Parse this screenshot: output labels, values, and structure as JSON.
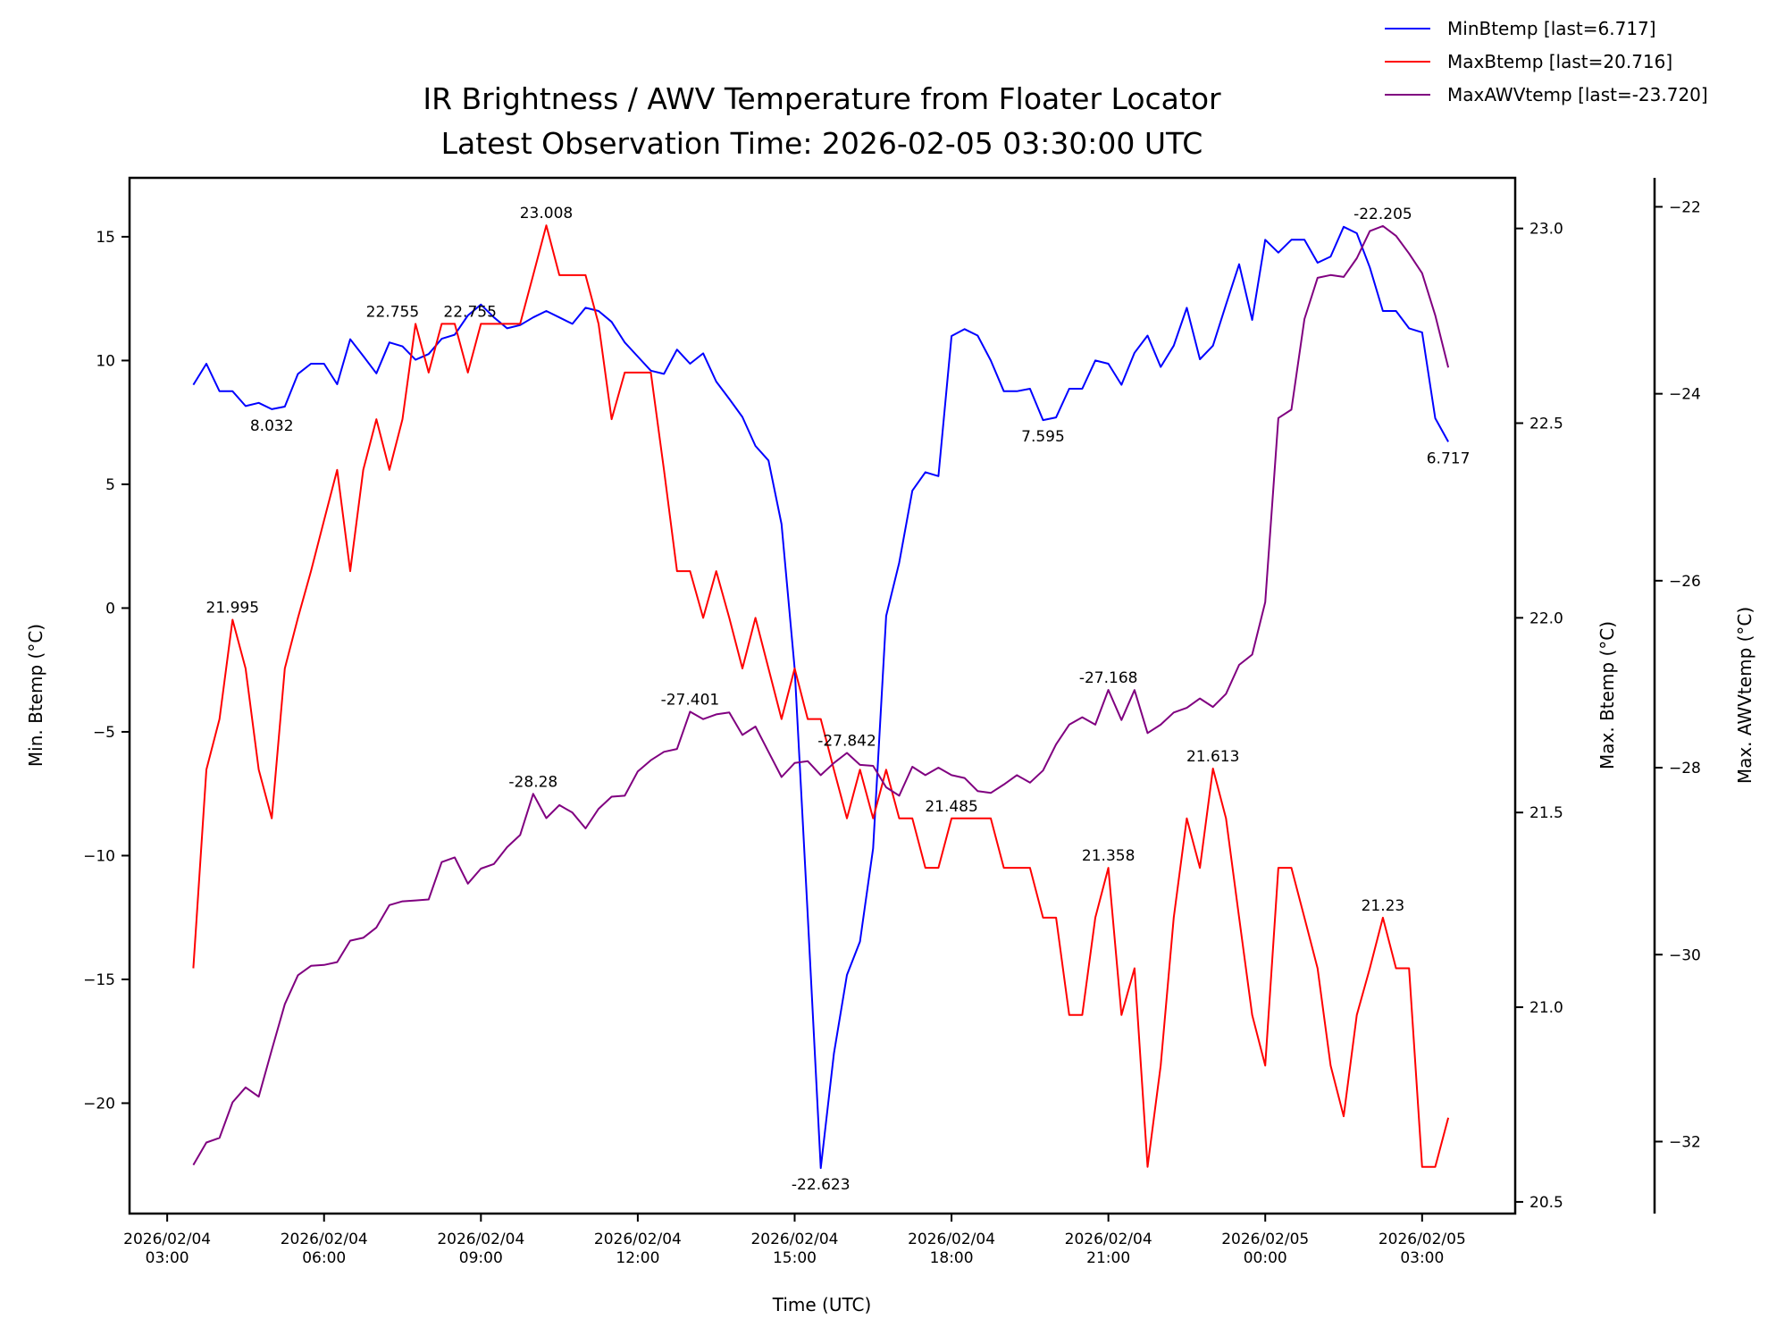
{
  "chart_data": {
    "type": "line",
    "title": [
      "IR Brightness / AWV Temperature from Floater Locator",
      "Latest Observation Time: 2026-02-05 03:30:00 UTC"
    ],
    "xlabel": "Time (UTC)",
    "x_unit": "hours since 2026-02-04 00:00 UTC",
    "x_start": 3.5,
    "x_step": 0.25,
    "xlim": [
      2.28,
      28.78
    ],
    "x_ticks": [
      {
        "value": 3,
        "label": [
          "2026/02/04",
          "03:00"
        ]
      },
      {
        "value": 6,
        "label": [
          "2026/02/04",
          "06:00"
        ]
      },
      {
        "value": 9,
        "label": [
          "2026/02/04",
          "09:00"
        ]
      },
      {
        "value": 12,
        "label": [
          "2026/02/04",
          "12:00"
        ]
      },
      {
        "value": 15,
        "label": [
          "2026/02/04",
          "15:00"
        ]
      },
      {
        "value": 18,
        "label": [
          "2026/02/04",
          "18:00"
        ]
      },
      {
        "value": 21,
        "label": [
          "2026/02/04",
          "21:00"
        ]
      },
      {
        "value": 24,
        "label": [
          "2026/02/05",
          "00:00"
        ]
      },
      {
        "value": 27,
        "label": [
          "2026/02/05",
          "03:00"
        ]
      }
    ],
    "axes": {
      "min": {
        "label": "Min. Btemp (°C)",
        "ylim": [
          -24.46,
          17.38
        ],
        "ticks": [
          {
            "v": -20,
            "t": "−20"
          },
          {
            "v": -15,
            "t": "−15"
          },
          {
            "v": -10,
            "t": "−10"
          },
          {
            "v": -5,
            "t": "−5"
          },
          {
            "v": 0,
            "t": "0"
          },
          {
            "v": 5,
            "t": "5"
          },
          {
            "v": 10,
            "t": "10"
          },
          {
            "v": 15,
            "t": "15"
          }
        ]
      },
      "max": {
        "label": "Max. Btemp (°C)",
        "ylim": [
          20.47,
          23.13
        ],
        "ticks": [
          {
            "v": 20.5,
            "t": "20.5"
          },
          {
            "v": 21.0,
            "t": "21.0"
          },
          {
            "v": 21.5,
            "t": "21.5"
          },
          {
            "v": 22.0,
            "t": "22.0"
          },
          {
            "v": 22.5,
            "t": "22.5"
          },
          {
            "v": 23.0,
            "t": "23.0"
          }
        ]
      },
      "awv": {
        "label": "Max. AWVtemp (°C)",
        "ylim": [
          -32.77,
          -21.69
        ],
        "ticks": [
          {
            "v": -32,
            "t": "−32"
          },
          {
            "v": -30,
            "t": "−30"
          },
          {
            "v": -28,
            "t": "−28"
          },
          {
            "v": -26,
            "t": "−26"
          },
          {
            "v": -24,
            "t": "−24"
          },
          {
            "v": -22,
            "t": "−22"
          }
        ]
      }
    },
    "series": [
      {
        "name": "MinBtemp",
        "legend": "MinBtemp [last=6.717]",
        "axis": "min",
        "color": "#0000ff",
        "values": [
          9.02,
          9.87,
          8.76,
          8.76,
          8.16,
          8.29,
          8.032,
          8.14,
          9.46,
          9.87,
          9.87,
          9.04,
          10.86,
          10.18,
          9.48,
          10.73,
          10.57,
          10.03,
          10.26,
          10.88,
          11.04,
          11.82,
          12.26,
          11.74,
          11.3,
          11.43,
          11.74,
          12.0,
          11.74,
          11.48,
          12.13,
          12.0,
          11.56,
          10.73,
          10.16,
          9.59,
          9.46,
          10.44,
          9.87,
          10.29,
          9.15,
          8.45,
          7.72,
          6.55,
          5.96,
          3.39,
          -2.45,
          -12.4,
          -22.623,
          -18.0,
          -14.82,
          -13.47,
          -9.71,
          -0.32,
          1.83,
          4.74,
          5.49,
          5.33,
          10.99,
          11.27,
          11.01,
          10.0,
          8.76,
          8.76,
          8.86,
          7.595,
          7.7,
          8.86,
          8.86,
          10.0,
          9.87,
          9.02,
          10.31,
          11.01,
          9.74,
          10.6,
          12.13,
          10.05,
          10.6,
          12.26,
          13.89,
          11.64,
          14.88,
          14.36,
          14.88,
          14.88,
          13.95,
          14.2,
          15.4,
          15.14,
          13.76,
          12.0,
          12.0,
          11.3,
          11.14,
          7.67,
          6.717
        ],
        "annotations": [
          {
            "i": 6,
            "text": "8.032",
            "pos": "below"
          },
          {
            "i": 65,
            "text": "7.595",
            "pos": "below"
          },
          {
            "i": 96,
            "text": "6.717",
            "pos": "below"
          },
          {
            "i": 48,
            "text": "-22.623",
            "pos": "below"
          }
        ]
      },
      {
        "name": "MaxBtemp",
        "legend": "MaxBtemp [last=20.716]",
        "axis": "max",
        "color": "#ff0000",
        "values": [
          21.1,
          21.61,
          21.74,
          21.995,
          21.87,
          21.61,
          21.485,
          21.87,
          22.0,
          22.12,
          22.25,
          22.38,
          22.12,
          22.38,
          22.51,
          22.38,
          22.51,
          22.755,
          22.63,
          22.755,
          22.755,
          22.63,
          22.755,
          22.755,
          22.755,
          22.755,
          22.88,
          23.008,
          22.88,
          22.88,
          22.88,
          22.755,
          22.51,
          22.63,
          22.63,
          22.63,
          22.38,
          22.12,
          22.12,
          22.0,
          22.12,
          22.0,
          21.87,
          22.0,
          21.87,
          21.74,
          21.87,
          21.74,
          21.74,
          21.61,
          21.485,
          21.61,
          21.485,
          21.61,
          21.485,
          21.485,
          21.358,
          21.358,
          21.485,
          21.485,
          21.485,
          21.485,
          21.358,
          21.358,
          21.358,
          21.23,
          21.23,
          20.98,
          20.98,
          21.23,
          21.358,
          20.98,
          21.1,
          20.59,
          20.85,
          21.23,
          21.485,
          21.358,
          21.613,
          21.485,
          21.23,
          20.98,
          20.85,
          21.358,
          21.358,
          21.23,
          21.1,
          20.85,
          20.72,
          20.98,
          21.1,
          21.23,
          21.1,
          21.1,
          20.59,
          20.59,
          20.716
        ],
        "annotations": [
          {
            "i": 3,
            "text": "21.995",
            "pos": "above"
          },
          {
            "i": 17,
            "text": "22.755",
            "pos": "above"
          },
          {
            "i": 19,
            "text": "22.755",
            "pos": "above"
          },
          {
            "i": 27,
            "text": "23.008",
            "pos": "above"
          },
          {
            "i": 58,
            "text": "21.485",
            "pos": "above"
          },
          {
            "i": 70,
            "text": "21.358",
            "pos": "above"
          },
          {
            "i": 78,
            "text": "21.613",
            "pos": "above"
          },
          {
            "i": 91,
            "text": "21.23",
            "pos": "above"
          }
        ]
      },
      {
        "name": "MaxAWVtemp",
        "legend": "MaxAWVtemp [last=-23.720]",
        "axis": "awv",
        "color": "#800080",
        "values": [
          -32.25,
          -32.01,
          -31.96,
          -31.58,
          -31.42,
          -31.52,
          -31.02,
          -30.53,
          -30.22,
          -30.12,
          -30.11,
          -30.08,
          -29.85,
          -29.82,
          -29.71,
          -29.47,
          -29.43,
          -29.42,
          -29.41,
          -29.01,
          -28.96,
          -29.24,
          -29.08,
          -29.03,
          -28.85,
          -28.72,
          -28.28,
          -28.54,
          -28.4,
          -28.48,
          -28.65,
          -28.44,
          -28.31,
          -28.3,
          -28.04,
          -27.92,
          -27.83,
          -27.8,
          -27.401,
          -27.48,
          -27.43,
          -27.41,
          -27.65,
          -27.56,
          -27.83,
          -28.1,
          -27.95,
          -27.93,
          -28.08,
          -27.95,
          -27.842,
          -27.97,
          -27.98,
          -28.21,
          -28.3,
          -27.99,
          -28.08,
          -28.0,
          -28.08,
          -28.11,
          -28.25,
          -28.27,
          -28.18,
          -28.08,
          -28.16,
          -28.03,
          -27.75,
          -27.54,
          -27.46,
          -27.54,
          -27.168,
          -27.49,
          -27.17,
          -27.63,
          -27.54,
          -27.41,
          -27.36,
          -27.26,
          -27.35,
          -27.21,
          -26.9,
          -26.79,
          -26.23,
          -24.26,
          -24.17,
          -23.2,
          -22.76,
          -22.73,
          -22.75,
          -22.55,
          -22.26,
          -22.205,
          -22.31,
          -22.5,
          -22.71,
          -23.16,
          -23.72
        ],
        "annotations": [
          {
            "i": 26,
            "text": "-28.28",
            "pos": "above"
          },
          {
            "i": 38,
            "text": "-27.401",
            "pos": "above"
          },
          {
            "i": 50,
            "text": "-27.842",
            "pos": "above"
          },
          {
            "i": 70,
            "text": "-27.168",
            "pos": "above"
          },
          {
            "i": 91,
            "text": "-22.205",
            "pos": "above"
          }
        ]
      }
    ],
    "legend_placement": "top-right"
  }
}
